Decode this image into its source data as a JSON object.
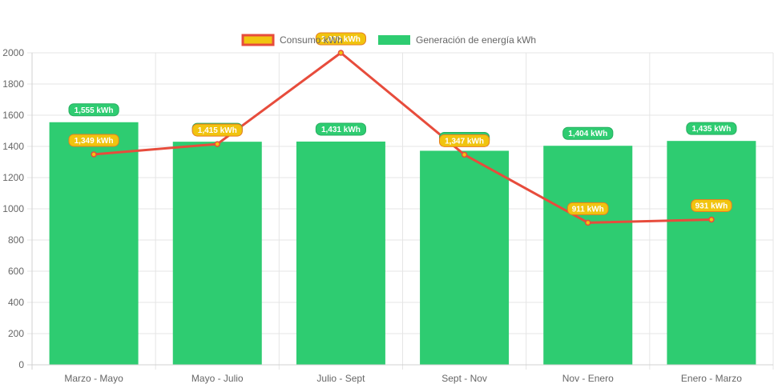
{
  "chart_data": {
    "type": "bar",
    "categories": [
      "Marzo - Mayo",
      "Mayo - Julio",
      "Julio - Sept",
      "Sept - Nov",
      "Nov - Enero",
      "Enero - Marzo"
    ],
    "ylim": [
      0,
      2000
    ],
    "yticks": [
      0,
      200,
      400,
      600,
      800,
      1000,
      1200,
      1400,
      1600,
      1800,
      2000
    ],
    "grid": true,
    "legend_position": "top",
    "series": [
      {
        "name": "Consumo kWh",
        "type": "line",
        "values": [
          1349,
          1415,
          2000,
          1347,
          911,
          931
        ],
        "data_labels": [
          "1,349 kWh",
          "1,415 kWh",
          "2,000 kWh",
          "1,347 kWh",
          "911 kWh",
          "931 kWh"
        ],
        "line_color": "#e74c3c",
        "fill_color": "#f1c40f"
      },
      {
        "name": "Generación de energía kWh",
        "type": "bar",
        "values": [
          1555,
          1430,
          1431,
          1372,
          1404,
          1435
        ],
        "data_labels": [
          "1,555 kWh",
          "1,430 kWh",
          "1,431 kWh",
          "1,372 kWh",
          "1,404 kWh",
          "1,435 kWh"
        ],
        "color": "#2ecc71"
      }
    ]
  }
}
